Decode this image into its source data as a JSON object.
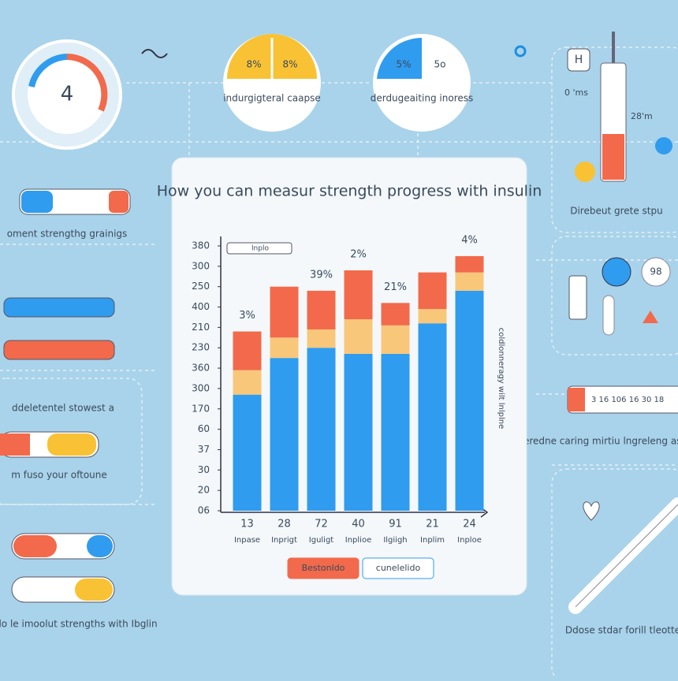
{
  "chart_data": {
    "type": "bar",
    "stacked": true,
    "title": "How you can measur strength progress  with insulin",
    "categories": [
      "13",
      "28",
      "72",
      "40",
      "91",
      "21",
      "24"
    ],
    "category_sublabels": [
      "Inpase",
      "Inprigt",
      "Iguligt",
      "Inplioe",
      "Ilgiigh",
      "Inplim",
      "Inploe"
    ],
    "annotations": [
      "3%",
      null,
      "39%",
      "2%",
      "21%",
      null,
      "4%"
    ],
    "series": [
      {
        "name": "cunelelido",
        "color": "#2f9cef",
        "values": [
          5.7,
          7.5,
          8.0,
          7.7,
          7.7,
          9.2,
          10.8
        ]
      },
      {
        "color": "#f8c77a",
        "values": [
          1.2,
          1.0,
          0.9,
          1.7,
          1.4,
          0.7,
          0.9
        ]
      },
      {
        "name": "Bestonldo",
        "color": "#f26a4b",
        "values": [
          1.9,
          2.5,
          1.9,
          2.4,
          1.1,
          1.8,
          0.8
        ]
      }
    ],
    "ylim": [
      0,
      13
    ],
    "yticks": [
      {
        "value": 0,
        "label": "06"
      },
      {
        "value": 1,
        "label": "20"
      },
      {
        "value": 2,
        "label": "30"
      },
      {
        "value": 3,
        "label": "37"
      },
      {
        "value": 4,
        "label": "60"
      },
      {
        "value": 5,
        "label": "170"
      },
      {
        "value": 6,
        "label": "300"
      },
      {
        "value": 7,
        "label": "360"
      },
      {
        "value": 8,
        "label": "230"
      },
      {
        "value": 9,
        "label": "210"
      },
      {
        "value": 10,
        "label": "400"
      },
      {
        "value": 11,
        "label": "250"
      },
      {
        "value": 12,
        "label": "300"
      },
      {
        "value": 13,
        "label": "380"
      }
    ],
    "top_legend": "lnplo",
    "side_label": "coldlonneragy wilt lnlplne"
  },
  "panels": {
    "gauge": "4",
    "circle1": {
      "left": "8%",
      "right": "8%",
      "caption": "indurgigteral caapse"
    },
    "circle2": {
      "left": "5%",
      "right": "5o",
      "caption": "derdugeaiting inoress"
    },
    "syringe_top": {
      "box": "H",
      "label1": "0 'ms",
      "label2": "28'm",
      "caption": "Direbeut grete stpu"
    },
    "left1": "oment strengthg grainigs",
    "left2": "ddeletentel stowest a",
    "left3": "m fuso your oftoune",
    "left4": "Carnlo le imoolut strengths with Ibglin",
    "right_scale": "3  16  106  16  30  18",
    "right1": "Stneredne caring mirtiu lngreleng as prele grig",
    "pill": "98",
    "right2": "Ddose stdar forill tleotte"
  }
}
